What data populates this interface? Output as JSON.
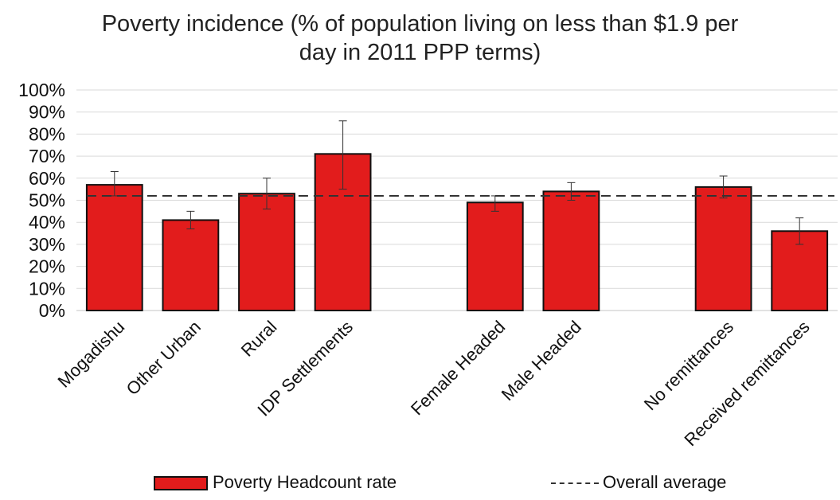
{
  "chart_data": {
    "type": "bar",
    "title_line1": "Poverty  incidence (% of population living on less than $1.9 per",
    "title_line2": "day in 2011 PPP terms)",
    "categories": [
      "Mogadishu",
      "Other Urban",
      "Rural",
      "IDP Settlements",
      "",
      "Female Headed",
      "Male Headed",
      "",
      "No remittances",
      "Received remittances"
    ],
    "series": [
      {
        "name": "Poverty Headcount rate",
        "values": [
          57,
          41,
          53,
          71,
          null,
          49,
          54,
          null,
          56,
          36
        ],
        "error_low": [
          52,
          37,
          46,
          55,
          null,
          45,
          50,
          null,
          51,
          30
        ],
        "error_high": [
          63,
          45,
          60,
          86,
          null,
          52,
          58,
          null,
          61,
          42
        ],
        "color": "#e21c1c"
      }
    ],
    "reference_line": {
      "name": "Overall average",
      "value": 52,
      "style": "dashed",
      "color": "#333333"
    },
    "ylim": [
      0,
      100
    ],
    "yticks": [
      "0%",
      "10%",
      "20%",
      "30%",
      "40%",
      "50%",
      "60%",
      "70%",
      "80%",
      "90%",
      "100%"
    ],
    "grid": true,
    "legend_position": "bottom"
  },
  "legend": {
    "bar_label": "Poverty Headcount rate",
    "line_label": "Overall average"
  }
}
